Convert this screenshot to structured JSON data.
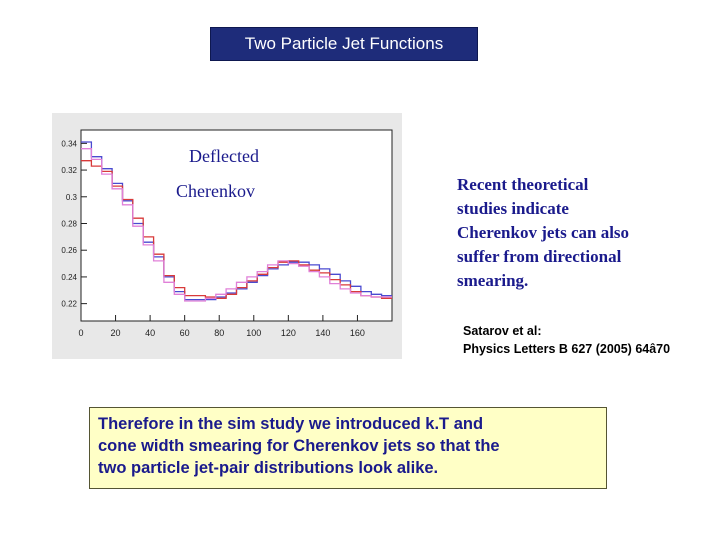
{
  "slide": {
    "title": "Two Particle Jet Functions",
    "labels": {
      "deflected": "Deflected",
      "cherenkov": "Cherenkov"
    },
    "note_lines": [
      "Recent theoretical",
      "studies indicate",
      "Cherenkov jets can also",
      "suffer from  directional",
      "smearing."
    ],
    "citation_lines": [
      "Satarov et al:",
      "Physics Letters B 627 (2005) 64â70"
    ],
    "conclusion_lines": [
      "Therefore in the sim study we introduced  k.T  and",
      "cone width smearing for Cherenkov jets so that  the",
      "two particle jet-pair distributions look alike."
    ]
  },
  "chart_data": {
    "type": "line",
    "step": true,
    "title": "",
    "xlabel": "",
    "ylabel": "",
    "xlim": [
      0,
      180
    ],
    "ylim": [
      0.207,
      0.35
    ],
    "x_ticks": [
      "0",
      "20",
      "40",
      "60",
      "80",
      "100",
      "120",
      "140",
      "160"
    ],
    "x_tick_values": [
      0,
      20,
      40,
      60,
      80,
      100,
      120,
      140,
      160
    ],
    "y_ticks": [
      "0.22",
      "0.24",
      "0.26",
      "0.28",
      "0.3",
      "0.32",
      "0.34"
    ],
    "y_tick_values": [
      0.22,
      0.24,
      0.26,
      0.28,
      0.3,
      0.32,
      0.34
    ],
    "grid": false,
    "bin_edges": [
      0,
      6,
      12,
      18,
      24,
      30,
      36,
      42,
      48,
      54,
      60,
      66,
      72,
      78,
      84,
      90,
      96,
      102,
      108,
      114,
      120,
      126,
      132,
      138,
      144,
      150,
      156,
      162,
      168,
      174,
      180
    ],
    "series": [
      {
        "color": "#4a4ad0",
        "values": [
          0.341,
          0.33,
          0.321,
          0.31,
          0.297,
          0.28,
          0.266,
          0.255,
          0.24,
          0.229,
          0.223,
          0.223,
          0.223,
          0.225,
          0.228,
          0.231,
          0.236,
          0.241,
          0.246,
          0.249,
          0.251,
          0.251,
          0.249,
          0.246,
          0.242,
          0.237,
          0.233,
          0.229,
          0.227,
          0.226
        ]
      },
      {
        "color": "#d83a3a",
        "values": [
          0.327,
          0.323,
          0.319,
          0.308,
          0.298,
          0.284,
          0.27,
          0.257,
          0.241,
          0.232,
          0.226,
          0.226,
          0.225,
          0.224,
          0.227,
          0.232,
          0.237,
          0.242,
          0.247,
          0.251,
          0.252,
          0.249,
          0.245,
          0.243,
          0.238,
          0.234,
          0.229,
          0.226,
          0.225,
          0.224
        ]
      },
      {
        "color": "#e080d8",
        "values": [
          0.336,
          0.328,
          0.317,
          0.306,
          0.294,
          0.278,
          0.264,
          0.252,
          0.236,
          0.227,
          0.222,
          0.222,
          0.224,
          0.227,
          0.231,
          0.236,
          0.24,
          0.244,
          0.249,
          0.252,
          0.25,
          0.248,
          0.244,
          0.24,
          0.235,
          0.231,
          0.228,
          0.226,
          0.225,
          0.225
        ]
      }
    ]
  }
}
